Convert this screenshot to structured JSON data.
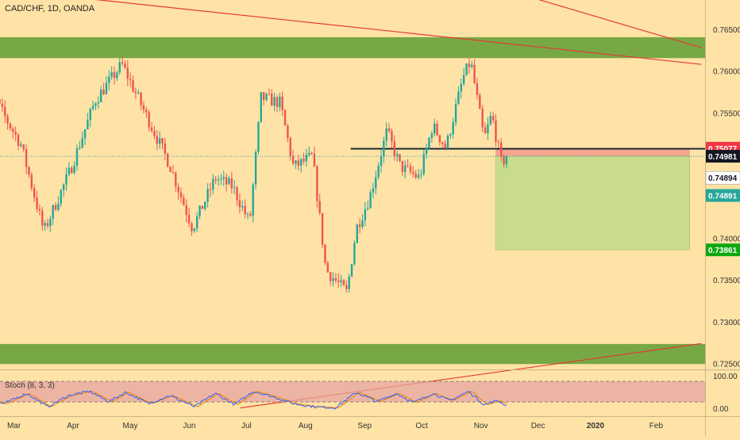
{
  "header": {
    "title": "CAD/CHF, 1D, OANDA"
  },
  "stoch": {
    "label": "Stoch (8, 3, 3)",
    "ticks": [
      "100.00",
      "0.00"
    ]
  },
  "colors": {
    "background": "#ffe3a6",
    "zone": "#78a844",
    "bull": "#26a69a",
    "bear": "#ef5350",
    "trendline": "#e53935",
    "stop_zone": "#f19a88",
    "target_zone": "#c9dc8e"
  },
  "price_labels": [
    {
      "value": 0.75077,
      "text": "0.75077",
      "bg": "#f23645",
      "fg": "#ffffff"
    },
    {
      "value": 0.74981,
      "text": "0.74981",
      "bg": "#131722",
      "fg": "#ffffff"
    },
    {
      "value": 0.74894,
      "text": "0.74894",
      "bg": "#ffffff",
      "fg": "#131722"
    },
    {
      "value": 0.74891,
      "text": "0.74891",
      "bg": "#26a69a",
      "fg": "#ffffff"
    },
    {
      "value": 0.73861,
      "text": "0.73861",
      "bg": "#0ea812",
      "fg": "#ffffff"
    }
  ],
  "chart_data": {
    "type": "candlestick",
    "title": "CAD/CHF, 1D, OANDA",
    "symbol": "CAD/CHF",
    "timeframe": "1D",
    "source": "OANDA",
    "y_ticks": [
      "0.76500",
      "0.76000",
      "0.75500",
      "0.75000",
      "0.74500",
      "0.74000",
      "0.73500",
      "0.73000",
      "0.72500"
    ],
    "ylim": [
      0.7244,
      0.7685
    ],
    "x_ticks": [
      "Mar",
      "Apr",
      "May",
      "Jun",
      "Jul",
      "Aug",
      "Sep",
      "Oct",
      "Nov",
      "Dec",
      "2020",
      "Feb"
    ],
    "zones": [
      {
        "from": 0.76155,
        "to": 0.76405
      },
      {
        "from": 0.72495,
        "to": 0.72735
      }
    ],
    "trendlines": [
      {
        "from": [
          "2019-02-16",
          0.77
        ],
        "to": [
          "2020-02-28",
          0.7608
        ]
      },
      {
        "from": [
          "2019-10-16",
          0.7719
        ],
        "to": [
          "2020-02-28",
          0.7628
        ]
      },
      {
        "from": [
          "2019-07-01",
          0.7197
        ],
        "to": [
          "2020-02-28",
          0.7274
        ]
      }
    ],
    "horizontal_line": {
      "value": 0.7507,
      "from": "2019-08-28",
      "to": "2020-02-28"
    },
    "position": {
      "entry": 0.7498,
      "stop": 0.75077,
      "target": 0.73861,
      "from": "2019-11-12",
      "to": "2020-02-22"
    },
    "last_close": 0.74981,
    "anchors": [
      [
        "2019-02-15",
        0.7608
      ],
      [
        "2019-02-25",
        0.7555
      ],
      [
        "2019-03-08",
        0.7512
      ],
      [
        "2019-03-20",
        0.7408
      ],
      [
        "2019-04-03",
        0.7482
      ],
      [
        "2019-04-16",
        0.7565
      ],
      [
        "2019-04-30",
        0.7608
      ],
      [
        "2019-05-14",
        0.7541
      ],
      [
        "2019-05-25",
        0.7488
      ],
      [
        "2019-06-06",
        0.7412
      ],
      [
        "2019-06-18",
        0.7472
      ],
      [
        "2019-06-27",
        0.7462
      ],
      [
        "2019-07-06",
        0.7418
      ],
      [
        "2019-07-12",
        0.7568
      ],
      [
        "2019-07-22",
        0.7562
      ],
      [
        "2019-07-29",
        0.7485
      ],
      [
        "2019-08-08",
        0.7498
      ],
      [
        "2019-08-15",
        0.7362
      ],
      [
        "2019-08-26",
        0.7335
      ],
      [
        "2019-08-31",
        0.7412
      ],
      [
        "2019-09-07",
        0.7449
      ],
      [
        "2019-09-16",
        0.7528
      ],
      [
        "2019-09-23",
        0.7486
      ],
      [
        "2019-10-03",
        0.7472
      ],
      [
        "2019-10-10",
        0.7535
      ],
      [
        "2019-10-17",
        0.7508
      ],
      [
        "2019-10-26",
        0.7592
      ],
      [
        "2019-10-30",
        0.7612
      ],
      [
        "2019-11-06",
        0.7518
      ],
      [
        "2019-11-10",
        0.7548
      ],
      [
        "2019-11-15",
        0.7491
      ],
      [
        "2019-11-18",
        0.7496
      ]
    ],
    "stoch_anchors": [
      [
        "2019-02-15",
        60
      ],
      [
        "2019-02-27",
        30
      ],
      [
        "2019-03-11",
        80
      ],
      [
        "2019-03-22",
        15
      ],
      [
        "2019-04-02",
        70
      ],
      [
        "2019-04-13",
        90
      ],
      [
        "2019-04-23",
        40
      ],
      [
        "2019-05-02",
        85
      ],
      [
        "2019-05-14",
        30
      ],
      [
        "2019-05-25",
        70
      ],
      [
        "2019-06-07",
        15
      ],
      [
        "2019-06-18",
        80
      ],
      [
        "2019-06-28",
        25
      ],
      [
        "2019-07-08",
        90
      ],
      [
        "2019-07-18",
        65
      ],
      [
        "2019-07-29",
        30
      ],
      [
        "2019-08-09",
        15
      ],
      [
        "2019-08-20",
        10
      ],
      [
        "2019-08-31",
        85
      ],
      [
        "2019-09-11",
        40
      ],
      [
        "2019-09-21",
        80
      ],
      [
        "2019-09-30",
        35
      ],
      [
        "2019-10-10",
        80
      ],
      [
        "2019-10-19",
        45
      ],
      [
        "2019-10-29",
        90
      ],
      [
        "2019-11-06",
        25
      ],
      [
        "2019-11-13",
        45
      ],
      [
        "2019-11-18",
        20
      ]
    ]
  }
}
